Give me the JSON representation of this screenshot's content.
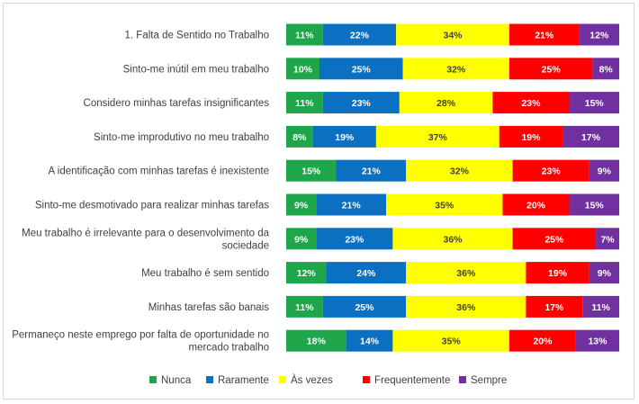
{
  "chart_data": {
    "type": "bar",
    "orientation": "horizontal",
    "stacked": "percent",
    "title": "",
    "xlabel": "",
    "ylabel": "",
    "legend_position": "bottom",
    "grid": false,
    "categories": [
      [
        "1. Falta de Sentido no Trabalho"
      ],
      [
        "Sinto-me inútil em meu trabalho"
      ],
      [
        "Considero minhas tarefas insignificantes"
      ],
      [
        "Sinto-me improdutivo no meu trabalho"
      ],
      [
        "A identificação com minhas tarefas é inexistente"
      ],
      [
        "Sinto-me desmotivado para realizar minhas tarefas"
      ],
      [
        "Meu trabalho é irrelevante para o desenvolvimento da",
        "sociedade"
      ],
      [
        "Meu trabalho é sem sentido"
      ],
      [
        "Minhas tarefas são banais"
      ],
      [
        "Permaneço neste emprego por falta de oportunidade no",
        "mercado trabalho"
      ]
    ],
    "series": [
      {
        "name": "Nunca",
        "color": "#1fa64a",
        "values": [
          11,
          10,
          11,
          8,
          15,
          9,
          9,
          12,
          11,
          18
        ]
      },
      {
        "name": "Raramente",
        "color": "#0b6fc2",
        "values": [
          22,
          25,
          23,
          19,
          21,
          21,
          23,
          24,
          25,
          14
        ]
      },
      {
        "name": "Às vezes",
        "color": "#ffff00",
        "values": [
          34,
          32,
          28,
          37,
          32,
          35,
          36,
          36,
          36,
          35
        ]
      },
      {
        "name": "Frequentemente",
        "color": "#ff0000",
        "values": [
          21,
          25,
          23,
          19,
          23,
          20,
          25,
          19,
          17,
          20
        ]
      },
      {
        "name": "Sempre",
        "color": "#7030a0",
        "values": [
          12,
          8,
          15,
          17,
          9,
          15,
          7,
          9,
          11,
          13
        ]
      }
    ],
    "value_suffix": "%"
  }
}
